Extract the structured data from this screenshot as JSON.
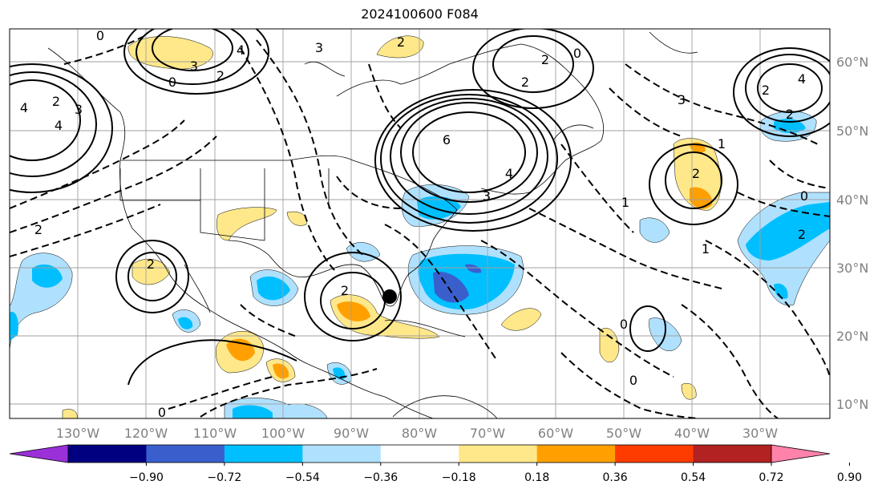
{
  "title": "2024100600 F084",
  "lon_labels": [
    "130°W",
    "120°W",
    "110°W",
    "100°W",
    "90°W",
    "80°W",
    "70°W",
    "60°W",
    "50°W",
    "40°W",
    "30°W"
  ],
  "lat_labels": [
    "60°N",
    "50°N",
    "40°N",
    "30°N",
    "20°N",
    "10°N"
  ],
  "colorbar": {
    "ticks": [
      "−0.90",
      "−0.72",
      "−0.54",
      "−0.36",
      "−0.18",
      "0.18",
      "0.36",
      "0.54",
      "0.72",
      "0.90"
    ],
    "colors": [
      "#9b30d8",
      "#000080",
      "#3a5fcd",
      "#00bfff",
      "#afe1ff",
      "#ffffff",
      "#ffe88a",
      "#ffa000",
      "#ff3c00",
      "#b22222",
      "#ff82ab"
    ]
  },
  "contour_labels": [
    "0",
    "4",
    "3",
    "2",
    "4",
    "2",
    "3",
    "0",
    "4",
    "6",
    "4",
    "3",
    "2",
    "2",
    "3",
    "2",
    "0",
    "2",
    "4",
    "2",
    "2",
    "3",
    "1",
    "0",
    "2",
    "2",
    "1",
    "1",
    "2",
    "2",
    "0",
    "0",
    "0"
  ],
  "marker": "storm-center"
}
